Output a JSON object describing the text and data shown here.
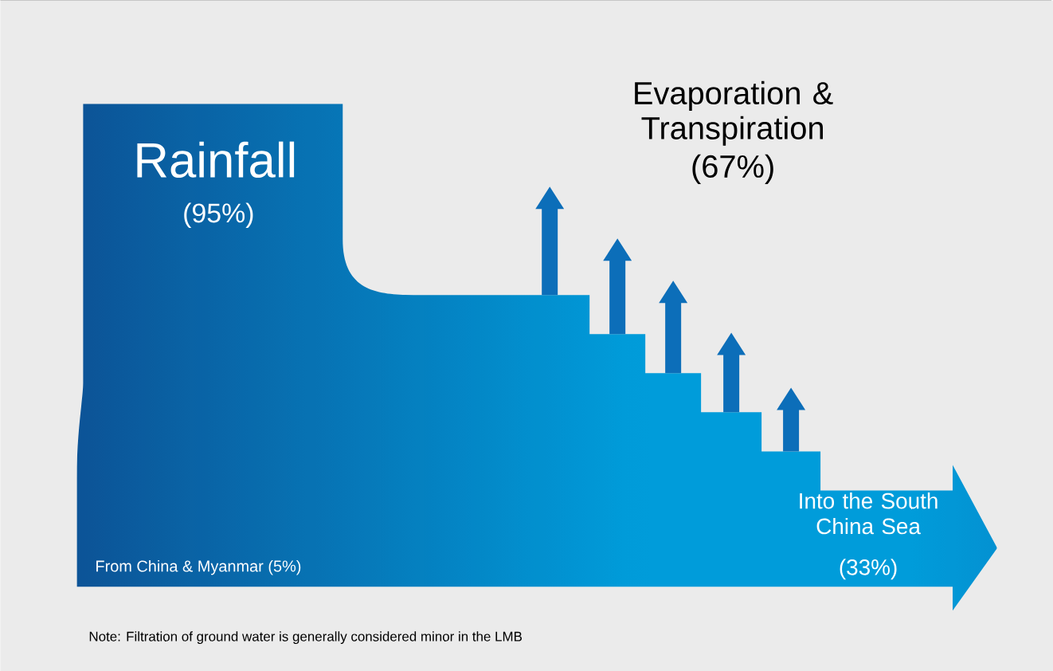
{
  "chart_data": {
    "type": "other",
    "categories": [
      "Rainfall",
      "From China & Myanmar",
      "Evaporation & Transpiration",
      "Into the South China Sea"
    ],
    "values": [
      95,
      5,
      67,
      33
    ],
    "value_labels": [
      "(95%)",
      "(5%)",
      "(67%)",
      "(33%)"
    ],
    "annotations": [
      "Note: Filtration of ground water is generally considered minor in the LMB"
    ]
  }
}
